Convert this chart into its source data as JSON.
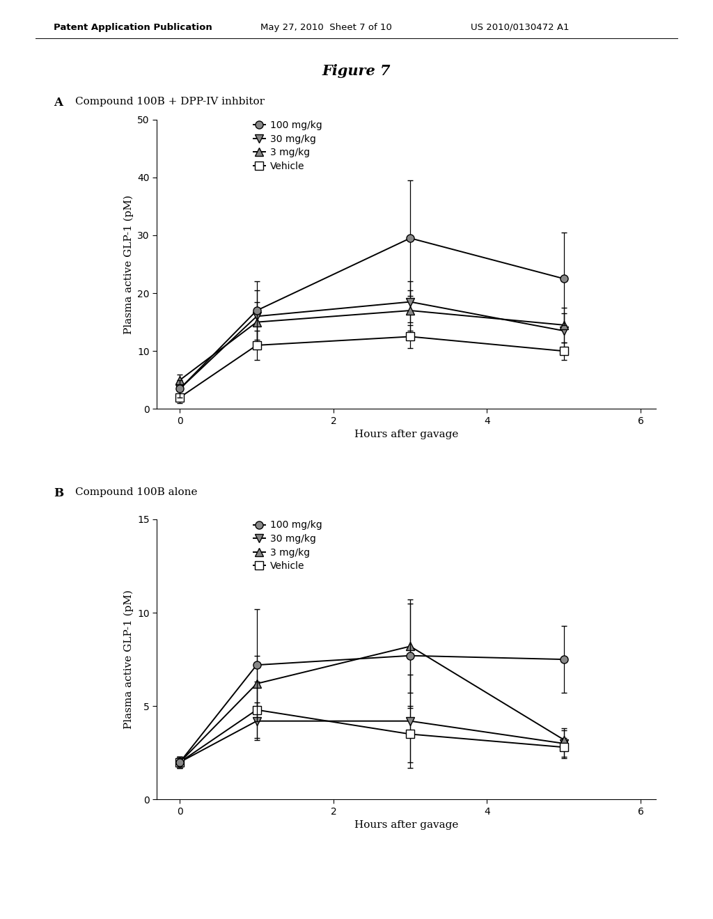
{
  "header_left": "Patent Application Publication",
  "header_mid": "May 27, 2010  Sheet 7 of 10",
  "header_right": "US 2010/0130472 A1",
  "figure_title": "Figure 7",
  "panel_A_label": "A",
  "panel_A_subtitle": "Compound 100B + DPP-IV inhbitor",
  "panel_B_label": "B",
  "panel_B_subtitle": "Compound 100B alone",
  "xlabel": "Hours after gavage",
  "ylabel": "Plasma active GLP-1 (pM)",
  "legend_labels": [
    "100 mg/kg",
    "30 mg/kg",
    "3 mg/kg",
    "Vehicle"
  ],
  "panel_A": {
    "x": [
      0,
      1,
      3,
      5
    ],
    "series_100": {
      "y": [
        3.5,
        17.0,
        29.5,
        22.5
      ],
      "yerr": [
        1.5,
        5.0,
        10.0,
        8.0
      ]
    },
    "series_30": {
      "y": [
        3.5,
        16.0,
        18.5,
        13.5
      ],
      "yerr": [
        1.0,
        4.5,
        3.5,
        3.0
      ]
    },
    "series_3": {
      "y": [
        5.0,
        15.0,
        17.0,
        14.5
      ],
      "yerr": [
        1.0,
        3.5,
        3.5,
        3.0
      ]
    },
    "series_veh": {
      "y": [
        2.0,
        11.0,
        12.5,
        10.0
      ],
      "yerr": [
        1.0,
        2.5,
        2.0,
        1.5
      ]
    },
    "ylim": [
      0,
      50
    ],
    "yticks": [
      0,
      10,
      20,
      30,
      40,
      50
    ]
  },
  "panel_B": {
    "x": [
      0,
      1,
      3,
      5
    ],
    "series_100": {
      "y": [
        2.0,
        7.2,
        7.7,
        7.5
      ],
      "yerr": [
        0.3,
        3.0,
        2.8,
        1.8
      ]
    },
    "series_30": {
      "y": [
        2.0,
        4.2,
        4.2,
        3.0
      ],
      "yerr": [
        0.3,
        1.0,
        2.5,
        0.8
      ]
    },
    "series_3": {
      "y": [
        2.0,
        6.2,
        8.2,
        3.2
      ],
      "yerr": [
        0.3,
        1.5,
        2.5,
        0.5
      ]
    },
    "series_veh": {
      "y": [
        2.0,
        4.8,
        3.5,
        2.8
      ],
      "yerr": [
        0.3,
        1.5,
        1.5,
        0.5
      ]
    },
    "ylim": [
      0,
      15
    ],
    "yticks": [
      0,
      5,
      10,
      15
    ]
  },
  "marker_size": 8,
  "line_width": 1.4,
  "cap_size": 3,
  "color_gray": "#888888",
  "color_black": "#000000",
  "background_color": "#ffffff"
}
